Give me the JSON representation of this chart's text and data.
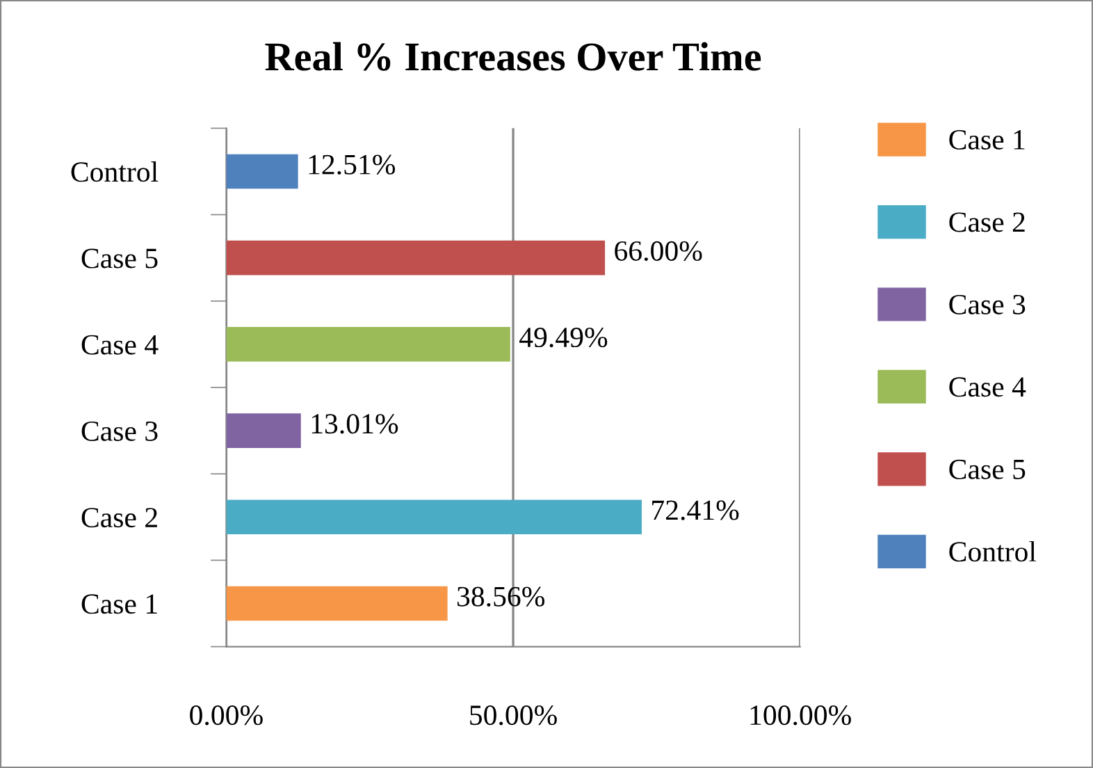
{
  "chart_data": {
    "type": "bar",
    "orientation": "horizontal",
    "stacked": true,
    "title": "Real % Increases Over Time",
    "categories": [
      "Control",
      "Case 5",
      "Case 4",
      "Case 3",
      "Case 2",
      "Case 1"
    ],
    "series": [
      {
        "name": "Case 1",
        "color": "#f79646",
        "values": [
          null,
          null,
          null,
          null,
          null,
          38.56
        ],
        "value_labels": [
          null,
          null,
          null,
          null,
          null,
          "38.56%"
        ]
      },
      {
        "name": "Case 2",
        "color": "#4bacc6",
        "values": [
          null,
          null,
          null,
          null,
          72.41,
          null
        ],
        "value_labels": [
          null,
          null,
          null,
          null,
          "72.41%",
          null
        ]
      },
      {
        "name": "Case 3",
        "color": "#8064a2",
        "values": [
          null,
          null,
          null,
          13.01,
          null,
          null
        ],
        "value_labels": [
          null,
          null,
          null,
          "13.01%",
          null,
          null
        ]
      },
      {
        "name": "Case 4",
        "color": "#9bbb59",
        "values": [
          null,
          null,
          49.49,
          null,
          null,
          null
        ],
        "value_labels": [
          null,
          null,
          "49.49%",
          null,
          null,
          null
        ]
      },
      {
        "name": "Case 5",
        "color": "#c0504d",
        "values": [
          null,
          66.0,
          null,
          null,
          null,
          null
        ],
        "value_labels": [
          null,
          "66.00%",
          null,
          null,
          null,
          null
        ]
      },
      {
        "name": "Control",
        "color": "#4f81bd",
        "values": [
          12.51,
          null,
          null,
          null,
          null,
          null
        ],
        "value_labels": [
          "12.51%",
          null,
          null,
          null,
          null,
          null
        ]
      }
    ],
    "xlim": [
      0,
      100
    ],
    "xticks": [
      {
        "value": 0,
        "label": "0.00%"
      },
      {
        "value": 50,
        "label": "50.00%"
      },
      {
        "value": 100,
        "label": "100.00%"
      }
    ],
    "grid": "x",
    "legend": "right"
  }
}
